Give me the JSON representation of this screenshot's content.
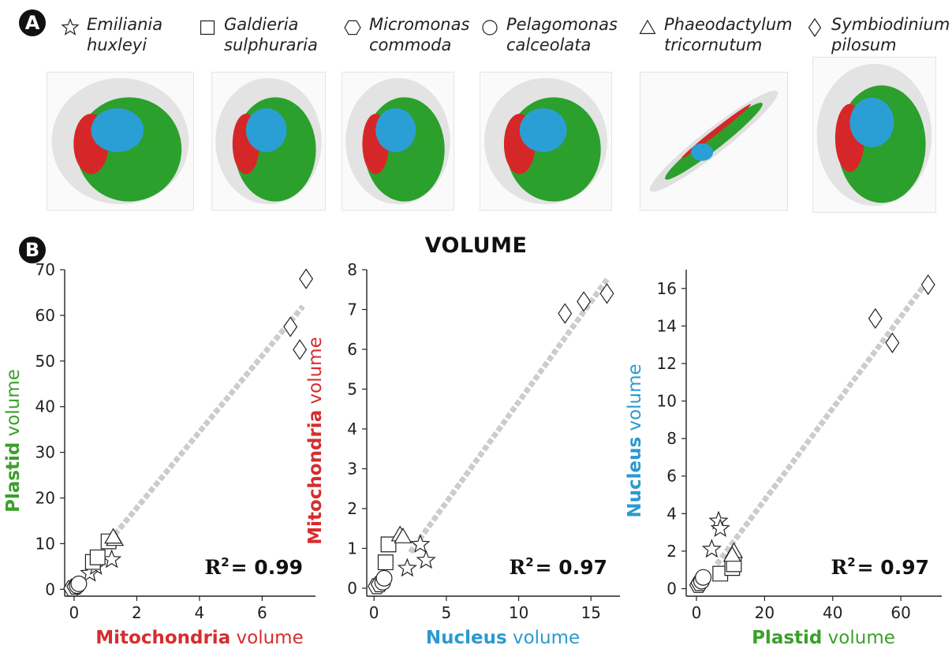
{
  "panel_a": {
    "badge": "A",
    "legend": [
      {
        "symbol": "star",
        "name": "Emiliania\nhuxleyi"
      },
      {
        "symbol": "square",
        "name": "Galdieria\nsulphuraria"
      },
      {
        "symbol": "hexagon",
        "name": "Micromonas\ncommoda"
      },
      {
        "symbol": "circle",
        "name": "Pelagomonas\ncalceolata"
      },
      {
        "symbol": "triangle",
        "name": "Phaeodactylum\ntricornutum"
      },
      {
        "symbol": "diamond",
        "name": "Symbiodinium\npilosum"
      }
    ],
    "organelle_colors": {
      "plastid": "#2ca02c",
      "mitochondria": "#d62728",
      "nucleus": "#2a9fd6",
      "cell": "#d9d9d9"
    }
  },
  "panel_b": {
    "badge": "B",
    "title": "VOLUME"
  },
  "colors": {
    "plastid": "#3aa02a",
    "mitochondria": "#d62d2d",
    "nucleus": "#2b9ad0",
    "fit_line": "#cccccc"
  },
  "chart_data": [
    {
      "type": "scatter",
      "xlabel": {
        "bold": "Mitochondria",
        "rest": " volume",
        "color_key": "mitochondria"
      },
      "ylabel": {
        "bold": "Plastid",
        "rest": " volume",
        "color_key": "plastid"
      },
      "xlim": [
        -0.3,
        7.7
      ],
      "ylim": [
        -1.5,
        70
      ],
      "xticks": [
        0,
        2,
        4,
        6
      ],
      "yticks": [
        0,
        10,
        20,
        30,
        40,
        50,
        60,
        70
      ],
      "r2_label": "= 0.99",
      "fit": [
        [
          1.3,
          12
        ],
        [
          7.3,
          62
        ]
      ],
      "points": [
        {
          "s": "star",
          "x": 0.5,
          "y": 3.5
        },
        {
          "s": "star",
          "x": 1.2,
          "y": 6.5
        },
        {
          "s": "star",
          "x": 0.7,
          "y": 5
        },
        {
          "s": "square",
          "x": 0.6,
          "y": 6
        },
        {
          "s": "square",
          "x": 0.75,
          "y": 7
        },
        {
          "s": "square",
          "x": 1.1,
          "y": 10.5
        },
        {
          "s": "hexagon",
          "x": -0.05,
          "y": 0.2
        },
        {
          "s": "hexagon",
          "x": 0.05,
          "y": 0.6
        },
        {
          "s": "circle",
          "x": 0.1,
          "y": 0.8
        },
        {
          "s": "circle",
          "x": 0.15,
          "y": 1.2
        },
        {
          "s": "triangle",
          "x": 1.3,
          "y": 11
        },
        {
          "s": "triangle",
          "x": 1.25,
          "y": 11.5
        },
        {
          "s": "diamond",
          "x": 6.9,
          "y": 57.5
        },
        {
          "s": "diamond",
          "x": 7.2,
          "y": 52.5
        },
        {
          "s": "diamond",
          "x": 7.4,
          "y": 68
        }
      ]
    },
    {
      "type": "scatter",
      "xlabel": {
        "bold": "Nucleus",
        "rest": " volume",
        "color_key": "nucleus"
      },
      "ylabel": {
        "bold": "Mitochondria",
        "rest": " volume",
        "color_key": "mitochondria"
      },
      "xlim": [
        -0.5,
        17
      ],
      "ylim": [
        -0.2,
        8
      ],
      "xticks": [
        0,
        5,
        10,
        15
      ],
      "yticks": [
        0,
        1,
        2,
        3,
        4,
        5,
        6,
        7,
        8
      ],
      "r2_label": "= 0.97",
      "fit": [
        [
          2.5,
          0.9
        ],
        [
          16.2,
          7.8
        ]
      ],
      "points": [
        {
          "s": "star",
          "x": 3.2,
          "y": 1.1
        },
        {
          "s": "star",
          "x": 2.3,
          "y": 0.5
        },
        {
          "s": "star",
          "x": 3.6,
          "y": 0.7
        },
        {
          "s": "square",
          "x": 1.0,
          "y": 1.1
        },
        {
          "s": "square",
          "x": 0.8,
          "y": 0.65
        },
        {
          "s": "hexagon",
          "x": 0.2,
          "y": 0.05
        },
        {
          "s": "hexagon",
          "x": 0.4,
          "y": 0.1
        },
        {
          "s": "circle",
          "x": 0.6,
          "y": 0.15
        },
        {
          "s": "circle",
          "x": 0.7,
          "y": 0.25
        },
        {
          "s": "triangle",
          "x": 1.8,
          "y": 1.35
        },
        {
          "s": "triangle",
          "x": 2.0,
          "y": 1.3
        },
        {
          "s": "diamond",
          "x": 13.2,
          "y": 6.9
        },
        {
          "s": "diamond",
          "x": 14.5,
          "y": 7.2
        },
        {
          "s": "diamond",
          "x": 16.1,
          "y": 7.4
        }
      ]
    },
    {
      "type": "scatter",
      "xlabel": {
        "bold": "Plastid",
        "rest": " volume",
        "color_key": "plastid"
      },
      "ylabel": {
        "bold": "Nucleus",
        "rest": " volume",
        "color_key": "nucleus"
      },
      "xlim": [
        -3,
        72
      ],
      "ylim": [
        -0.4,
        17
      ],
      "xticks": [
        0,
        20,
        40,
        60
      ],
      "yticks": [
        0,
        2,
        4,
        6,
        8,
        10,
        12,
        14,
        16
      ],
      "r2_label": "= 0.97",
      "fit": [
        [
          6,
          1.3
        ],
        [
          67,
          16.2
        ]
      ],
      "points": [
        {
          "s": "star",
          "x": 6.5,
          "y": 3.6
        },
        {
          "s": "star",
          "x": 7.0,
          "y": 3.2
        },
        {
          "s": "star",
          "x": 4.5,
          "y": 2.1
        },
        {
          "s": "square",
          "x": 7.0,
          "y": 0.8
        },
        {
          "s": "square",
          "x": 10.5,
          "y": 1.1
        },
        {
          "s": "square",
          "x": 11.0,
          "y": 1.3
        },
        {
          "s": "hexagon",
          "x": 0.6,
          "y": 0.2
        },
        {
          "s": "hexagon",
          "x": 1.0,
          "y": 0.3
        },
        {
          "s": "circle",
          "x": 1.5,
          "y": 0.4
        },
        {
          "s": "circle",
          "x": 2.0,
          "y": 0.6
        },
        {
          "s": "triangle",
          "x": 11.0,
          "y": 2.0
        },
        {
          "s": "triangle",
          "x": 10.5,
          "y": 1.8
        },
        {
          "s": "diamond",
          "x": 52.5,
          "y": 14.4
        },
        {
          "s": "diamond",
          "x": 57.5,
          "y": 13.1
        },
        {
          "s": "diamond",
          "x": 68,
          "y": 16.2
        }
      ]
    }
  ]
}
